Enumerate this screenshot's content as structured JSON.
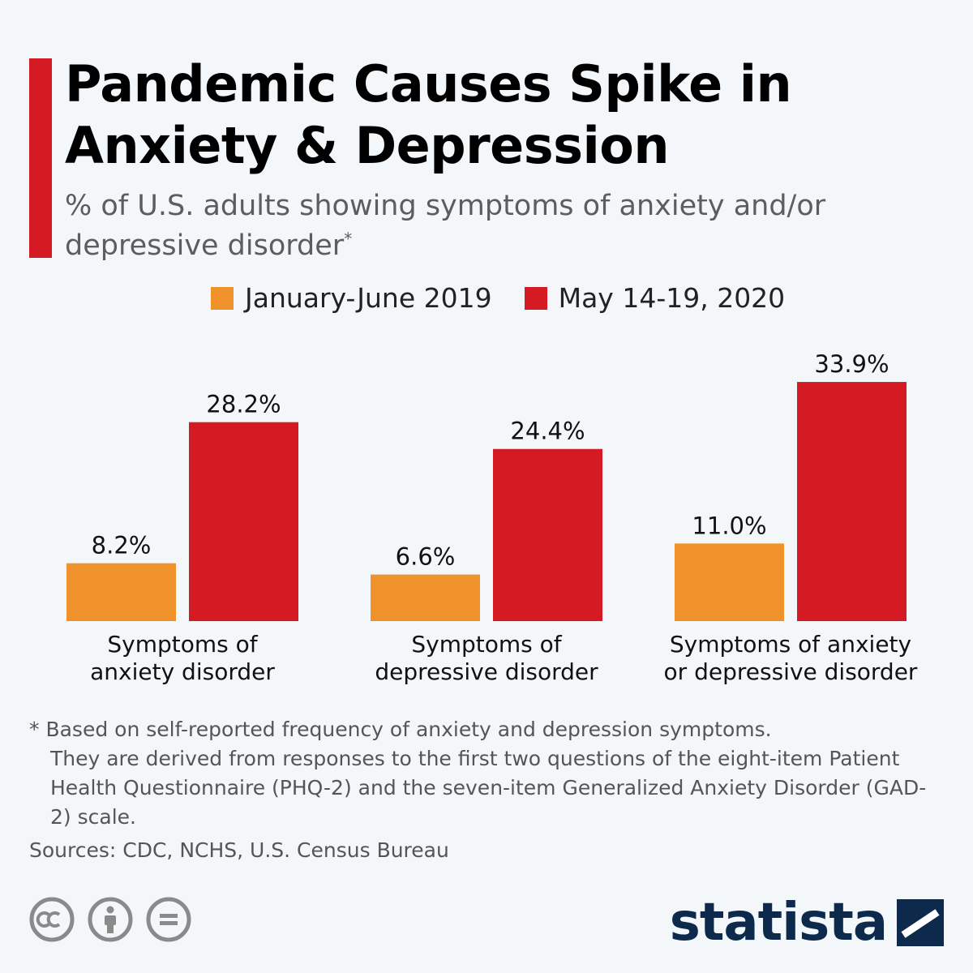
{
  "header": {
    "title": "Pandemic Causes Spike in Anxiety & Depression",
    "subtitle": "% of U.S. adults showing symptoms of anxiety and/or depressive disorder",
    "subtitle_marker": "*"
  },
  "legend": {
    "items": [
      {
        "label": "January-June 2019",
        "color": "#f0922b"
      },
      {
        "label": "May 14-19, 2020",
        "color": "#d61a24"
      }
    ]
  },
  "chart_data": {
    "type": "bar",
    "categories": [
      [
        "Symptoms of",
        "anxiety disorder"
      ],
      [
        "Symptoms of",
        "depressive disorder"
      ],
      [
        "Symptoms of anxiety",
        "or depressive disorder"
      ]
    ],
    "series": [
      {
        "name": "January-June 2019",
        "values": [
          8.2,
          6.6,
          11.0
        ],
        "labels": [
          "8.2%",
          "6.6%",
          "11.0%"
        ],
        "color": "#f0922b"
      },
      {
        "name": "May 14-19, 2020",
        "values": [
          28.2,
          24.4,
          33.9
        ],
        "labels": [
          "28.2%",
          "24.4%",
          "33.9%"
        ],
        "color": "#d61a24"
      }
    ],
    "title": "Pandemic Causes Spike in Anxiety & Depression",
    "xlabel": "",
    "ylabel": "",
    "grid": false,
    "legend_position": "top"
  },
  "footnote": {
    "marker": "*",
    "first": "Based on self-reported frequency of anxiety and depression symptoms.",
    "rest": "They are derived from responses to the first two questions of the eight-item Patient Health Questionnaire (PHQ-2) and the seven-item Generalized Anxiety Disorder (GAD-2) scale."
  },
  "sources": "Sources: CDC, NCHS, U.S. Census Bureau",
  "license_icons": [
    "creative-commons-icon",
    "attribution-icon",
    "no-derivatives-icon"
  ],
  "brand": {
    "name": "statista",
    "icon": "statista-logo-icon"
  }
}
